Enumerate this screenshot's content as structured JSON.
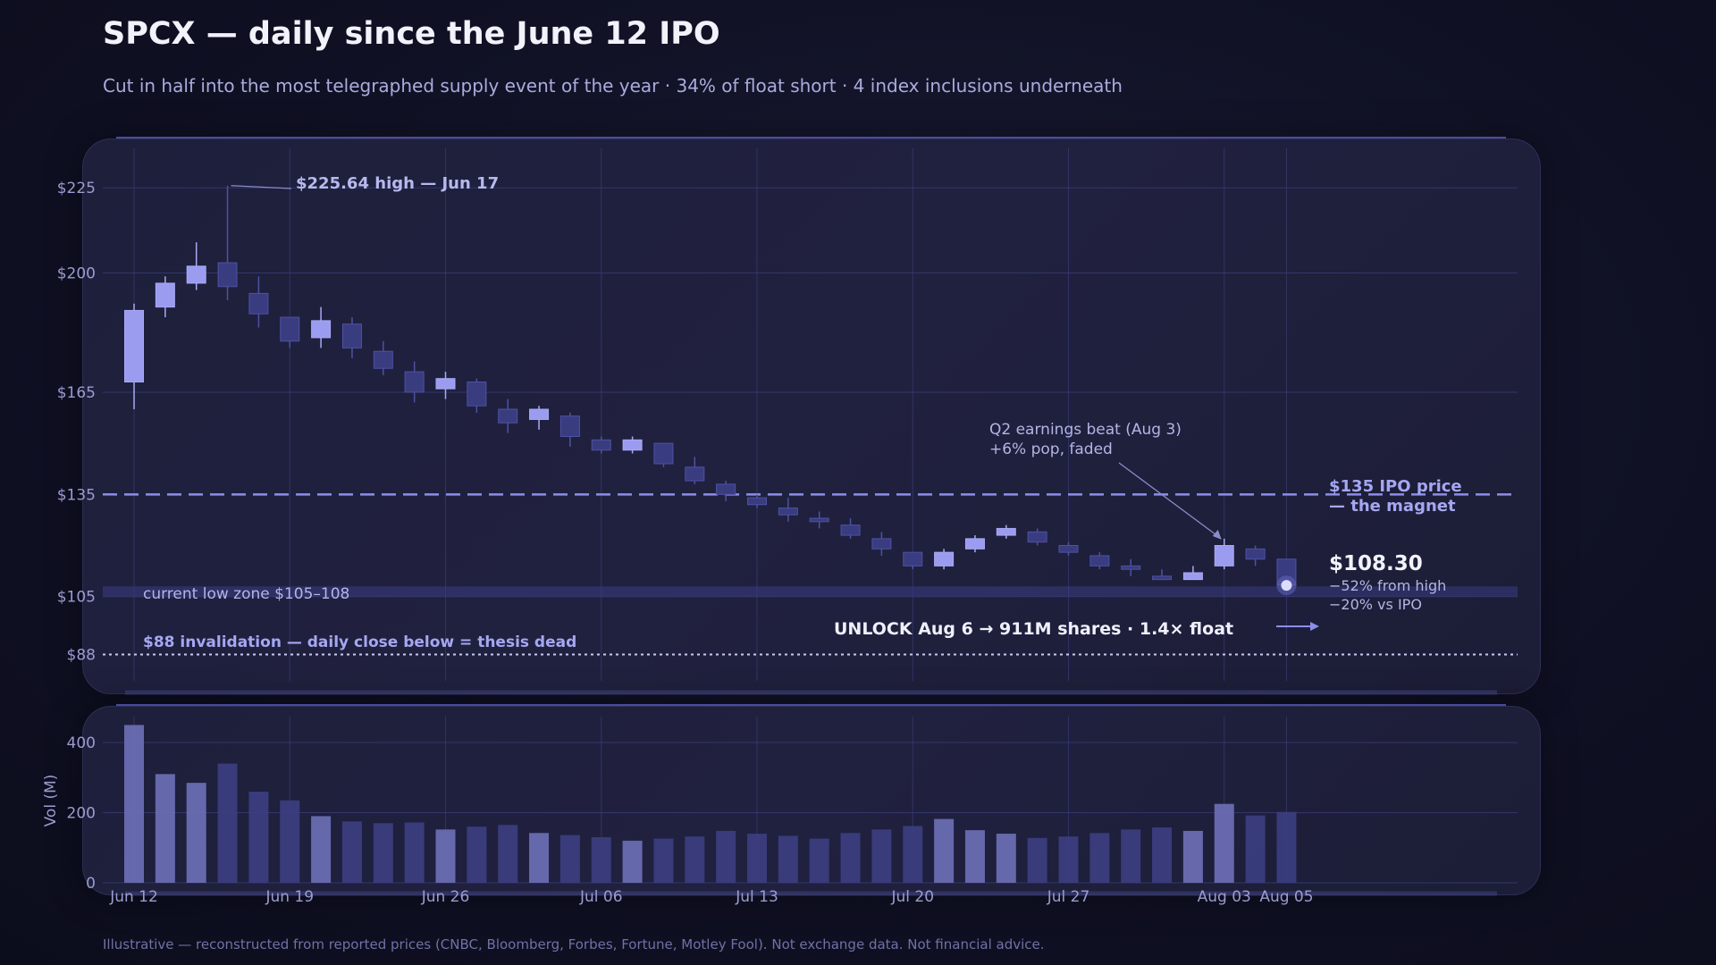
{
  "header": {
    "title": "SPCX — daily since the June 12 IPO",
    "subtitle": "Cut in half into the most telegraphed supply event of the year   ·   34% of float short   ·   4 index inclusions underneath"
  },
  "footer": {
    "note": "Illustrative — reconstructed from reported prices (CNBC, Bloomberg, Forbes, Fortune, Motley Fool). Not exchange data. Not financial advice."
  },
  "colors": {
    "up": "#9b9cf0",
    "down": "#3a3c80",
    "ipo_line": "#8c8eea",
    "accent_text": "#a5a7f2",
    "grid": "#3a3b78"
  },
  "chart_data": [
    {
      "type": "candlestick",
      "ylim": [
        80,
        240
      ],
      "y_ticks": [
        225,
        200,
        165,
        135,
        105,
        88
      ],
      "y_tick_labels": [
        "$225",
        "$200",
        "$165",
        "$135",
        "$105",
        "$88"
      ],
      "x_ticks": [
        "Jun 12",
        "Jun 19",
        "Jun 26",
        "Jul 06",
        "Jul 13",
        "Jul 20",
        "Jul 27",
        "Aug 03",
        "Aug 05"
      ],
      "x_tick_index": [
        0,
        5,
        10,
        15,
        20,
        25,
        30,
        35,
        37
      ],
      "candles": [
        {
          "o": 168,
          "h": 191,
          "l": 160,
          "c": 189
        },
        {
          "o": 190,
          "h": 199,
          "l": 187,
          "c": 197
        },
        {
          "o": 197,
          "h": 209,
          "l": 195,
          "c": 202
        },
        {
          "o": 203,
          "h": 225.64,
          "l": 192,
          "c": 196
        },
        {
          "o": 194,
          "h": 199,
          "l": 184,
          "c": 188
        },
        {
          "o": 187,
          "h": 187,
          "l": 178,
          "c": 180
        },
        {
          "o": 181,
          "h": 190,
          "l": 178,
          "c": 186
        },
        {
          "o": 185,
          "h": 187,
          "l": 175,
          "c": 178
        },
        {
          "o": 177,
          "h": 180,
          "l": 170,
          "c": 172
        },
        {
          "o": 171,
          "h": 174,
          "l": 162,
          "c": 165
        },
        {
          "o": 166,
          "h": 171,
          "l": 163,
          "c": 169
        },
        {
          "o": 168,
          "h": 169,
          "l": 159,
          "c": 161
        },
        {
          "o": 160,
          "h": 163,
          "l": 153,
          "c": 156
        },
        {
          "o": 157,
          "h": 161,
          "l": 154,
          "c": 160
        },
        {
          "o": 158,
          "h": 159,
          "l": 149,
          "c": 152
        },
        {
          "o": 151,
          "h": 152,
          "l": 147,
          "c": 148
        },
        {
          "o": 148,
          "h": 152,
          "l": 147,
          "c": 151
        },
        {
          "o": 150,
          "h": 150,
          "l": 143,
          "c": 144
        },
        {
          "o": 143,
          "h": 146,
          "l": 138,
          "c": 139
        },
        {
          "o": 138,
          "h": 139,
          "l": 133,
          "c": 135
        },
        {
          "o": 134,
          "h": 135,
          "l": 131,
          "c": 132
        },
        {
          "o": 131,
          "h": 134,
          "l": 127,
          "c": 129
        },
        {
          "o": 128,
          "h": 130,
          "l": 125,
          "c": 127
        },
        {
          "o": 126,
          "h": 128,
          "l": 122,
          "c": 123
        },
        {
          "o": 122,
          "h": 124,
          "l": 117,
          "c": 119
        },
        {
          "o": 118,
          "h": 118,
          "l": 113,
          "c": 114
        },
        {
          "o": 114,
          "h": 119,
          "l": 113,
          "c": 118
        },
        {
          "o": 119,
          "h": 123,
          "l": 118,
          "c": 122
        },
        {
          "o": 123,
          "h": 126,
          "l": 122,
          "c": 125
        },
        {
          "o": 124,
          "h": 125,
          "l": 120,
          "c": 121
        },
        {
          "o": 120,
          "h": 121,
          "l": 117,
          "c": 118
        },
        {
          "o": 117,
          "h": 118,
          "l": 113,
          "c": 114
        },
        {
          "o": 114,
          "h": 116,
          "l": 111,
          "c": 113
        },
        {
          "o": 111,
          "h": 113,
          "l": 110,
          "c": 110
        },
        {
          "o": 110,
          "h": 114,
          "l": 110,
          "c": 112
        },
        {
          "o": 114,
          "h": 122,
          "l": 113,
          "c": 120
        },
        {
          "o": 119,
          "h": 120,
          "l": 114,
          "c": 116
        },
        {
          "o": 116,
          "h": 116,
          "l": 107,
          "c": 108.3
        }
      ],
      "annotations": {
        "high_label": "$225.64 high — Jun 17",
        "earnings_line1": "Q2 earnings beat (Aug 3)",
        "earnings_line2": "+6% pop, faded",
        "ipo_label_line1": "$135  IPO price",
        "ipo_label_line2": "— the magnet",
        "ipo_price": 135,
        "low_zone_label": "current low zone  $105–108",
        "low_zone": [
          105,
          108
        ],
        "invalidation_label": "$88  invalidation — daily close below = thesis dead",
        "invalidation_price": 88,
        "unlock_label": "UNLOCK  Aug 6 →   911M shares · 1.4× float",
        "last_price": "$108.30",
        "last_value": 108.3,
        "from_high": "−52% from high",
        "vs_ipo": "−20% vs IPO"
      }
    },
    {
      "type": "bar",
      "ylabel": "Vol (M)",
      "ylim": [
        0,
        450
      ],
      "y_ticks": [
        0,
        200,
        400
      ],
      "values": [
        450,
        310,
        285,
        340,
        260,
        235,
        190,
        175,
        170,
        172,
        152,
        160,
        165,
        142,
        136,
        130,
        120,
        126,
        132,
        148,
        140,
        134,
        126,
        142,
        152,
        162,
        182,
        150,
        140,
        128,
        132,
        142,
        152,
        158,
        148,
        225,
        192,
        202
      ]
    }
  ]
}
